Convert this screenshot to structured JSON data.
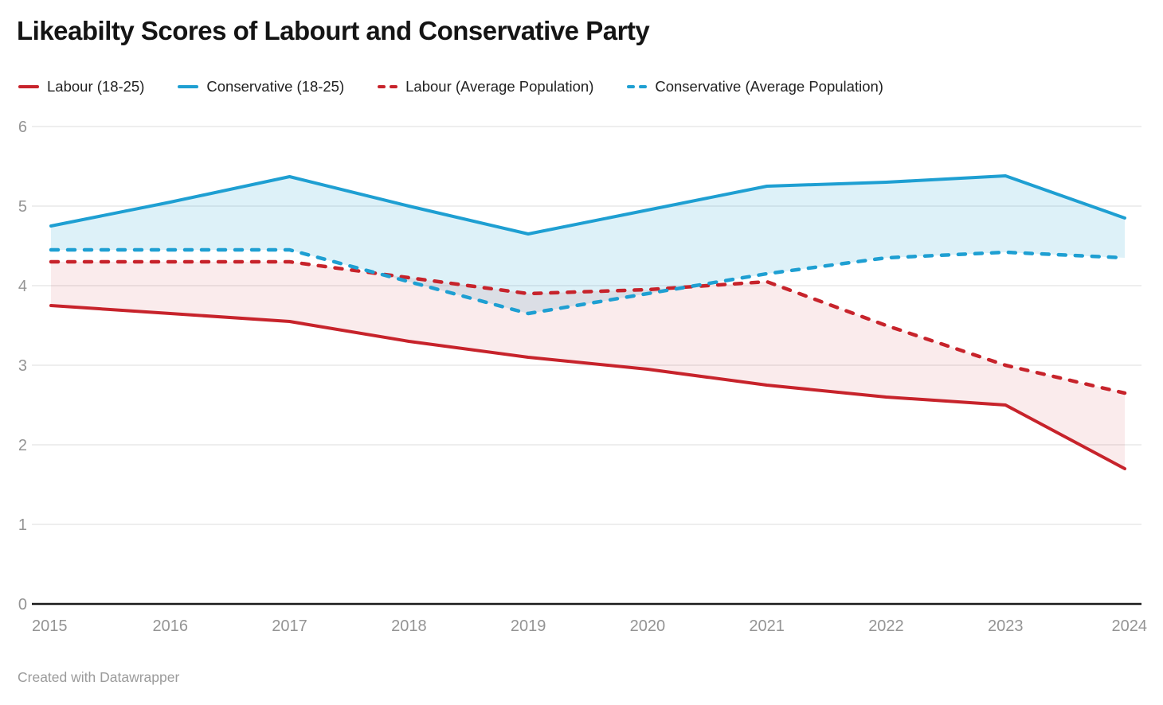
{
  "header": {
    "title": "Likeabilty Scores of Labourt and Conservative Party"
  },
  "legend": [
    {
      "label": "Labour (18-25)",
      "color": "#c7232b",
      "style": "solid"
    },
    {
      "label": "Conservative (18-25)",
      "color": "#1e9fd2",
      "style": "solid"
    },
    {
      "label": "Labour (Average Population)",
      "color": "#c7232b",
      "style": "dashed"
    },
    {
      "label": "Conservative (Average Population)",
      "color": "#1e9fd2",
      "style": "dashed"
    }
  ],
  "footer": {
    "credit": "Created with Datawrapper"
  },
  "chart_data": {
    "type": "line",
    "title": "Likeabilty Scores of Labourt and Conservative Party",
    "x": [
      2015,
      2016,
      2017,
      2018,
      2019,
      2020,
      2021,
      2022,
      2023,
      2024
    ],
    "series": [
      {
        "name": "Labour (18-25)",
        "color": "#c7232b",
        "dash": false,
        "values": [
          3.75,
          3.65,
          3.55,
          3.3,
          3.1,
          2.95,
          2.75,
          2.6,
          2.5,
          1.7
        ]
      },
      {
        "name": "Conservative (18-25)",
        "color": "#1e9fd2",
        "dash": false,
        "values": [
          4.75,
          5.05,
          5.37,
          5.0,
          4.65,
          4.95,
          5.25,
          5.3,
          5.38,
          4.85
        ]
      },
      {
        "name": "Labour (Average Population)",
        "color": "#c7232b",
        "dash": true,
        "values": [
          4.3,
          4.3,
          4.3,
          4.1,
          3.9,
          3.95,
          4.05,
          3.5,
          3.0,
          2.65
        ]
      },
      {
        "name": "Conservative (Average Population)",
        "color": "#1e9fd2",
        "dash": true,
        "values": [
          4.45,
          4.45,
          4.45,
          4.05,
          3.65,
          3.9,
          4.15,
          4.35,
          4.42,
          4.35
        ]
      }
    ],
    "areas": [
      {
        "upper": "Conservative (18-25)",
        "lower": "Conservative (Average Population)",
        "fill": "rgba(30,160,210,0.15)"
      },
      {
        "upper": "Labour (Average Population)",
        "lower": "Labour (18-25)",
        "fill": "rgba(199,35,43,0.09)"
      }
    ],
    "xlabel": "",
    "ylabel": "",
    "ylim": [
      0,
      6
    ],
    "yticks": [
      0,
      1,
      2,
      3,
      4,
      5,
      6
    ],
    "grid": true,
    "legend_position": "top"
  }
}
